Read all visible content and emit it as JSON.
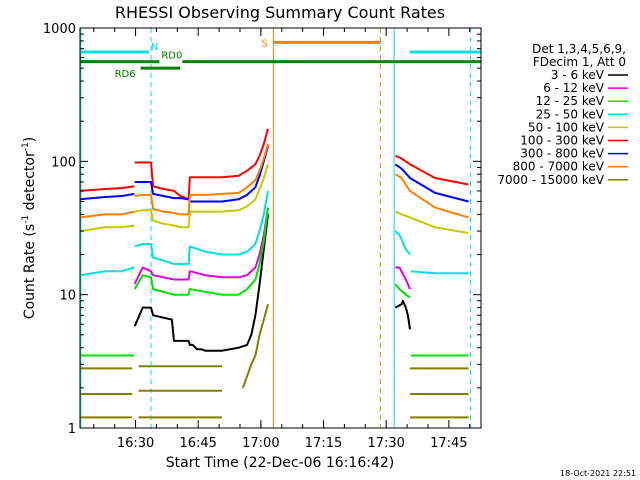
{
  "chart_data": {
    "type": "line",
    "title": "RHESSI Observing Summary Count Rates",
    "xlabel": "Start Time (22-Dec-06 16:16:42)",
    "ylabel_main": "Count Rate (s",
    "ylabel_sup1": "-1",
    "ylabel_mid": " detector",
    "ylabel_sup2": "-1",
    "ylabel_end": ")",
    "y_scale": "log",
    "ylim": [
      1,
      1000
    ],
    "xlim_minutes_after_start": [
      0,
      96
    ],
    "x_ticks": [
      {
        "label": "16:30",
        "minutes": 13.3
      },
      {
        "label": "16:45",
        "minutes": 28.3
      },
      {
        "label": "17:00",
        "minutes": 43.3
      },
      {
        "label": "17:15",
        "minutes": 58.3
      },
      {
        "label": "17:30",
        "minutes": 73.3
      },
      {
        "label": "17:45",
        "minutes": 88.3
      }
    ],
    "y_ticks": [
      {
        "label": "1",
        "value": 1
      },
      {
        "label": "10",
        "value": 10
      },
      {
        "label": "100",
        "value": 100
      },
      {
        "label": "1000",
        "value": 1000
      }
    ],
    "legend_position": "top-right",
    "legend_header": [
      "Det 1,3,4,5,6,9,",
      "FDecim 1, Att 0"
    ],
    "series": [
      {
        "name": "3 - 6 keV",
        "color": "#000000",
        "segments": [
          {
            "x": [
              13.1,
              15,
              17,
              17.5,
              22,
              22.5,
              26,
              26.3,
              27,
              28,
              29,
              30,
              32,
              34,
              36,
              38,
              40,
              41,
              42,
              43,
              44,
              45
            ],
            "y": [
              5.8,
              8,
              8,
              7,
              6.5,
              4.5,
              4.5,
              4.2,
              4.2,
              3.9,
              3.9,
              3.8,
              3.8,
              3.8,
              3.9,
              4.0,
              4.2,
              5,
              7,
              12,
              22,
              40
            ]
          },
          {
            "x": [
              75.5,
              77,
              77.3,
              78,
              78.5,
              79
            ],
            "y": [
              8,
              8.5,
              9,
              8,
              7,
              5.5
            ]
          }
        ]
      },
      {
        "name": "6 - 12 keV",
        "color": "#e000e0",
        "segments": [
          {
            "x": [
              13.1,
              15,
              17,
              17.5,
              20,
              22.5,
              24,
              26,
              26.3,
              30,
              34,
              38,
              40,
              42,
              43,
              44,
              45
            ],
            "y": [
              12,
              16,
              15,
              14,
              13.5,
              13,
              13,
              13,
              15,
              14,
              13.5,
              13.5,
              14,
              16,
              20,
              28,
              45
            ]
          },
          {
            "x": [
              75.5,
              76.5,
              78,
              79
            ],
            "y": [
              16,
              16,
              13,
              11
            ]
          }
        ]
      },
      {
        "name": "12 - 25 keV",
        "color": "#00e000",
        "segments": [
          {
            "x": [
              0,
              10,
              13
            ],
            "y": [
              3.5,
              3.5,
              3.5
            ]
          },
          {
            "x": [
              13.1,
              15,
              17,
              17.5,
              20,
              22.5,
              24,
              26,
              26.3,
              30,
              34,
              38,
              40,
              42,
              43,
              44,
              45
            ],
            "y": [
              11,
              14,
              13.5,
              11,
              10.5,
              10,
              10,
              10,
              11,
              10.5,
              10,
              10,
              11,
              13,
              17,
              25,
              45
            ]
          },
          {
            "x": [
              75.5,
              76.5,
              78,
              79
            ],
            "y": [
              12,
              11,
              10,
              9.5
            ]
          },
          {
            "x": [
              79.2,
              88,
              93
            ],
            "y": [
              3.5,
              3.5,
              3.5
            ]
          }
        ]
      },
      {
        "name": "25 - 50 keV",
        "color": "#00e0e0",
        "segments": [
          {
            "x": [
              0,
              6,
              10,
              13
            ],
            "y": [
              14,
              15,
              15,
              16
            ]
          },
          {
            "x": [
              13.1,
              15,
              17,
              17.5,
              20,
              22.5,
              24,
              26,
              26.3,
              30,
              34,
              38,
              40,
              42,
              43,
              44,
              45
            ],
            "y": [
              23,
              24,
              24,
              19,
              18,
              17,
              17,
              17,
              23,
              21,
              20,
              20,
              21,
              24,
              30,
              40,
              60
            ]
          },
          {
            "x": [
              75.5,
              76.5,
              78,
              79
            ],
            "y": [
              30,
              28,
              22,
              20
            ]
          },
          {
            "x": [
              79.2,
              85,
              93
            ],
            "y": [
              15,
              14.5,
              14.5
            ]
          }
        ]
      },
      {
        "name": "50 - 100 keV",
        "color": "#c8c800",
        "segments": [
          {
            "x": [
              0,
              6,
              10,
              13
            ],
            "y": [
              30,
              32,
              32,
              33
            ]
          },
          {
            "x": [
              13.1,
              15,
              17,
              17.5,
              20,
              22.5,
              24,
              26,
              26.3,
              30,
              34,
              38,
              40,
              42,
              43,
              44,
              45
            ],
            "y": [
              42,
              43,
              43,
              36,
              34,
              33,
              32,
              32,
              42,
              42,
              42,
              43,
              46,
              52,
              62,
              75,
              95
            ]
          },
          {
            "x": [
              75.5,
              77,
              79,
              85,
              93
            ],
            "y": [
              42,
              40,
              38,
              32,
              29
            ]
          }
        ]
      },
      {
        "name": "100 - 300 keV",
        "color": "#ff0000",
        "segments": [
          {
            "x": [
              0,
              6,
              10,
              13
            ],
            "y": [
              60,
              62,
              63,
              65
            ]
          },
          {
            "x": [
              13.1,
              15,
              17,
              17.5,
              20,
              22.5,
              24,
              26,
              26.3,
              30,
              34,
              38,
              40,
              42,
              43,
              44,
              45
            ],
            "y": [
              98,
              98,
              98,
              65,
              62,
              60,
              55,
              52,
              76,
              76,
              76,
              78,
              85,
              95,
              110,
              135,
              175
            ]
          },
          {
            "x": [
              75.5,
              77,
              79,
              85,
              93
            ],
            "y": [
              110,
              105,
              95,
              75,
              67
            ]
          }
        ]
      },
      {
        "name": "300 - 800 keV",
        "color": "#0000ff",
        "segments": [
          {
            "x": [
              0,
              6,
              10,
              13
            ],
            "y": [
              52,
              54,
              55,
              57
            ]
          },
          {
            "x": [
              13.1,
              15,
              17,
              17.5,
              20,
              22.5,
              24,
              26,
              26.3,
              30,
              34,
              38,
              40,
              42,
              43,
              44,
              45
            ],
            "y": [
              70,
              70,
              70,
              57,
              55,
              53,
              53,
              52,
              50,
              50,
              50,
              52,
              56,
              64,
              78,
              100,
              130
            ]
          },
          {
            "x": [
              75.5,
              77,
              79,
              85,
              93
            ],
            "y": [
              95,
              88,
              75,
              58,
              50
            ]
          }
        ]
      },
      {
        "name": "800 - 7000 keV",
        "color": "#ff8000",
        "segments": [
          {
            "x": [
              0,
              6,
              10,
              13
            ],
            "y": [
              38,
              40,
              40,
              42
            ]
          },
          {
            "x": [
              13.1,
              15,
              17,
              17.5,
              20,
              22.5,
              24,
              26,
              26.3,
              30,
              34,
              38,
              40,
              42,
              43,
              44,
              45
            ],
            "y": [
              55,
              56,
              56,
              44,
              42,
              41,
              40,
              40,
              56,
              56,
              57,
              58,
              64,
              72,
              85,
              105,
              135
            ]
          },
          {
            "x": [
              75.5,
              77,
              79,
              85,
              93
            ],
            "y": [
              80,
              75,
              60,
              45,
              38
            ]
          }
        ]
      },
      {
        "name": "7000 - 15000 keV",
        "color": "#808000",
        "segments": [
          {
            "x": [
              0,
              12.5
            ],
            "y": [
              2.8,
              2.8
            ]
          },
          {
            "x": [
              0,
              12.5
            ],
            "y": [
              1.8,
              1.8
            ]
          },
          {
            "x": [
              0,
              12.5
            ],
            "y": [
              1.2,
              1.2
            ]
          },
          {
            "x": [
              14,
              34
            ],
            "y": [
              2.9,
              2.9
            ]
          },
          {
            "x": [
              14,
              34
            ],
            "y": [
              1.9,
              1.9
            ]
          },
          {
            "x": [
              14,
              34
            ],
            "y": [
              1.2,
              1.2
            ]
          },
          {
            "x": [
              39,
              41,
              42,
              43,
              44,
              45
            ],
            "y": [
              2.0,
              3.0,
              3.5,
              5,
              6.5,
              8.5
            ]
          },
          {
            "x": [
              79,
              93
            ],
            "y": [
              2.8,
              2.8
            ]
          },
          {
            "x": [
              79,
              93
            ],
            "y": [
              1.8,
              1.8
            ]
          },
          {
            "x": [
              79,
              93
            ],
            "y": [
              1.2,
              1.2
            ]
          }
        ]
      }
    ],
    "flag_bars": [
      {
        "label": "N",
        "color": "#00e0e0",
        "y": 660,
        "ranges": [
          [
            0,
            16.5
          ],
          [
            79,
            96
          ]
        ]
      },
      {
        "label": "S",
        "color": "#ff8000",
        "y": 780,
        "ranges": [
          [
            46.3,
            72
          ]
        ]
      },
      {
        "label": "RD0",
        "color": "#008000",
        "y": 560,
        "ranges": [
          [
            0,
            19
          ],
          [
            24.5,
            96
          ]
        ]
      },
      {
        "label": "RD6",
        "color": "#008000",
        "y": 500,
        "ranges": [
          [
            14.5,
            24
          ]
        ]
      }
    ],
    "vlines": [
      {
        "x": 0.2,
        "color": "#00e0e0",
        "style": "solid"
      },
      {
        "x": 17.0,
        "color": "#00e0e0",
        "style": "dashed"
      },
      {
        "x": 46.3,
        "color": "#ff8000",
        "style": "solid"
      },
      {
        "x": 71.9,
        "color": "#ff8000",
        "style": "dashed"
      },
      {
        "x": 75.2,
        "color": "#00e0e0",
        "style": "solid"
      },
      {
        "x": 93.5,
        "color": "#00e0e0",
        "style": "dashed"
      }
    ],
    "timestamp": "18-Oct-2021 22:51"
  }
}
